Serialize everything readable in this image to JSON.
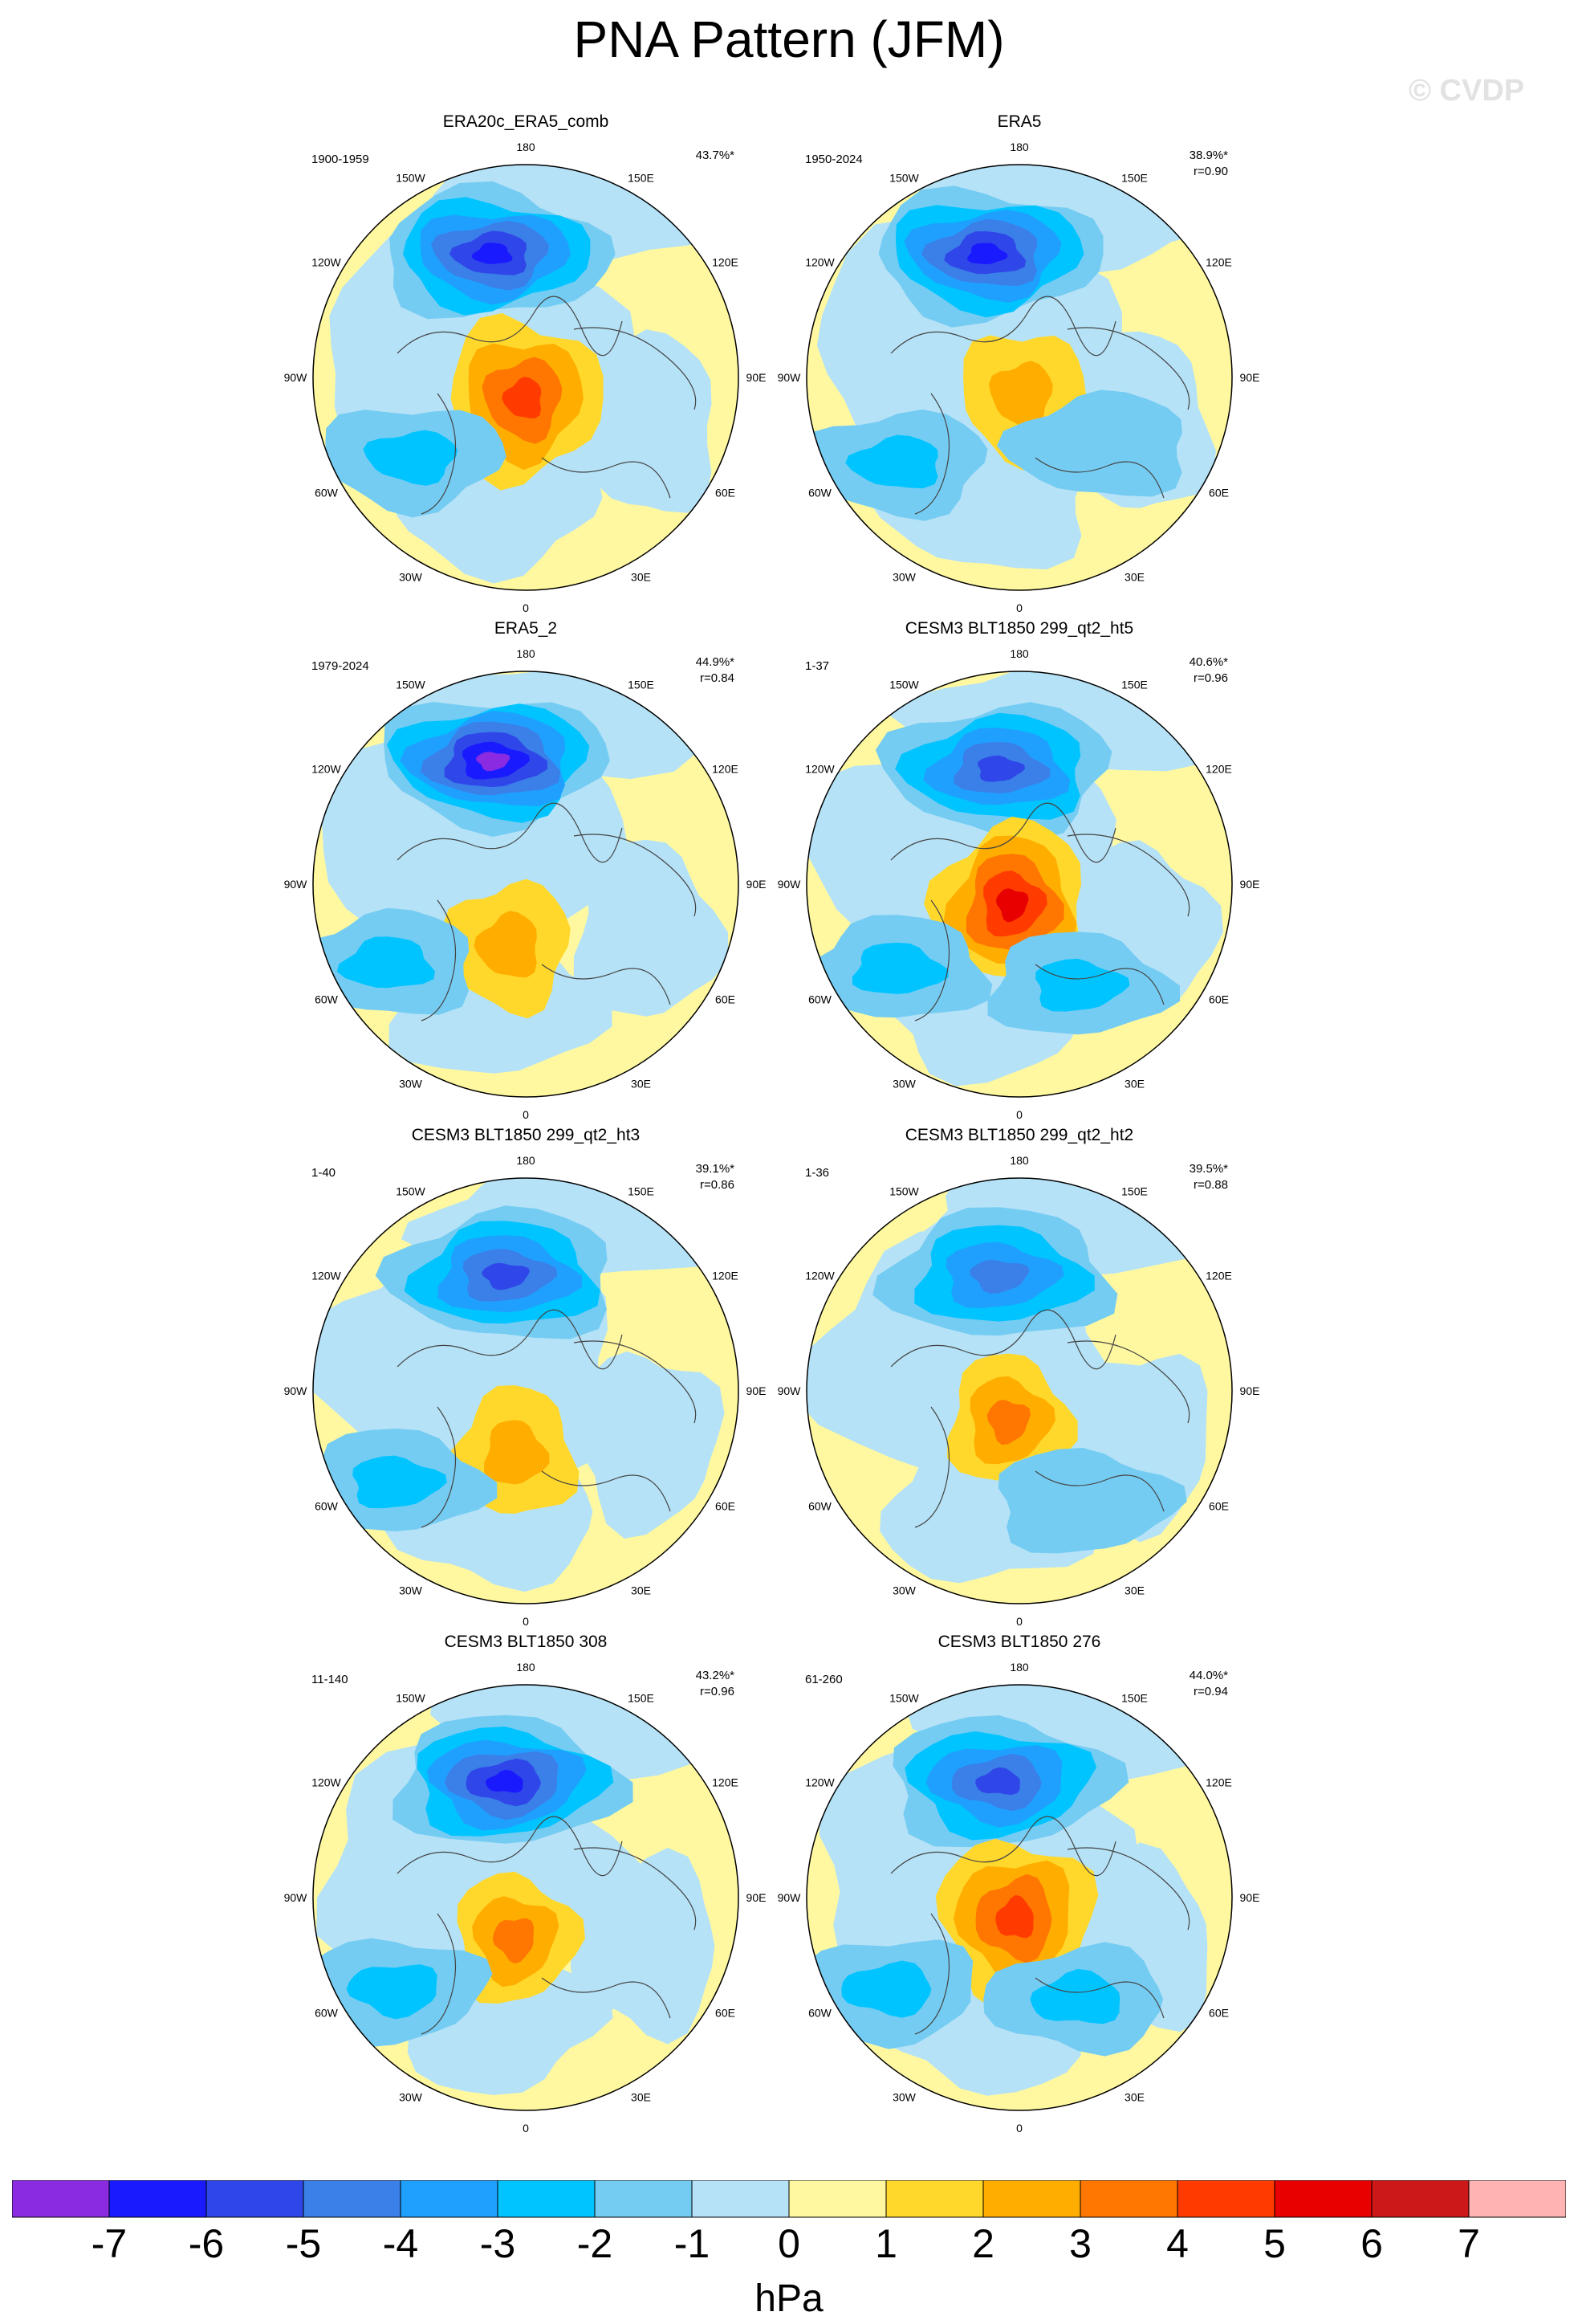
{
  "title": "PNA Pattern (JFM)",
  "watermark": "© CVDP",
  "colors": [
    "#8a2be2",
    "#1a1aff",
    "#2f47e8",
    "#3b7fe8",
    "#1fa0ff",
    "#00c4ff",
    "#75ccf2",
    "#b5e2f7",
    "#fff8a0",
    "#ffd82b",
    "#ffae00",
    "#ff7600",
    "#ff3b00",
    "#e80000",
    "#cc1818",
    "#ffb3b3"
  ],
  "lon_labels": [
    "180",
    "150E",
    "120E",
    "90E",
    "60E",
    "30E",
    "0",
    "30W",
    "60W",
    "90W",
    "120W",
    "150W"
  ],
  "panels": [
    {
      "title": "ERA20c_ERA5_comb",
      "period": "1900-1959",
      "pct": "43.7%*",
      "r": "",
      "features": [
        {
          "type": "neg",
          "level": 6,
          "lon": -165,
          "colat": 0.6
        },
        {
          "type": "pos",
          "level": 4,
          "lon": -5,
          "colat": 0.1
        },
        {
          "type": "neg",
          "level": 2,
          "lon": -55,
          "colat": 0.65
        }
      ]
    },
    {
      "title": "ERA5",
      "period": "1950-2024",
      "pct": "38.9%*",
      "r": "r=0.90",
      "features": [
        {
          "type": "neg",
          "level": 6,
          "lon": -165,
          "colat": 0.6
        },
        {
          "type": "pos",
          "level": 2,
          "lon": 10,
          "colat": 0.08
        },
        {
          "type": "neg",
          "level": 2,
          "lon": -55,
          "colat": 0.7
        },
        {
          "type": "neg",
          "level": 1,
          "lon": 50,
          "colat": 0.5
        }
      ]
    },
    {
      "title": "ERA5_2",
      "period": "1979-2024",
      "pct": "44.9%*",
      "r": "r=0.84",
      "features": [
        {
          "type": "neg",
          "level": 7,
          "lon": -165,
          "colat": 0.6
        },
        {
          "type": "pos",
          "level": 2,
          "lon": -15,
          "colat": 0.3
        },
        {
          "type": "neg",
          "level": 2,
          "lon": -60,
          "colat": 0.75
        }
      ]
    },
    {
      "title": "CESM3 BLT1850 299_qt2_ht5",
      "period": "1-37",
      "pct": "40.6%*",
      "r": "r=0.96",
      "features": [
        {
          "type": "neg",
          "level": 5,
          "lon": -170,
          "colat": 0.55
        },
        {
          "type": "pos",
          "level": 5,
          "lon": -20,
          "colat": 0.1
        },
        {
          "type": "neg",
          "level": 2,
          "lon": -55,
          "colat": 0.7
        },
        {
          "type": "neg",
          "level": 2,
          "lon": 30,
          "colat": 0.55
        }
      ]
    },
    {
      "title": "CESM3 BLT1850 299_qt2_ht3",
      "period": "1-40",
      "pct": "39.1%*",
      "r": "r=0.86",
      "features": [
        {
          "type": "neg",
          "level": 5,
          "lon": -170,
          "colat": 0.55
        },
        {
          "type": "pos",
          "level": 2,
          "lon": -10,
          "colat": 0.3
        },
        {
          "type": "neg",
          "level": 2,
          "lon": -55,
          "colat": 0.75
        }
      ]
    },
    {
      "title": "CESM3 BLT1850 299_qt2_ht2",
      "period": "1-36",
      "pct": "39.5%*",
      "r": "r=0.88",
      "features": [
        {
          "type": "neg",
          "level": 4,
          "lon": -170,
          "colat": 0.55
        },
        {
          "type": "pos",
          "level": 3,
          "lon": -20,
          "colat": 0.15
        },
        {
          "type": "neg",
          "level": 1,
          "lon": 30,
          "colat": 0.6
        }
      ]
    },
    {
      "title": "CESM3 BLT1850 308",
      "period": "11-140",
      "pct": "43.2%*",
      "r": "r=0.96",
      "features": [
        {
          "type": "neg",
          "level": 6,
          "lon": -170,
          "colat": 0.55
        },
        {
          "type": "pos",
          "level": 3,
          "lon": -15,
          "colat": 0.2
        },
        {
          "type": "neg",
          "level": 2,
          "lon": -55,
          "colat": 0.75
        }
      ]
    },
    {
      "title": "CESM3 BLT1850 276",
      "period": "61-260",
      "pct": "44.0%*",
      "r": "r=0.94",
      "features": [
        {
          "type": "neg",
          "level": 5,
          "lon": -170,
          "colat": 0.55
        },
        {
          "type": "pos",
          "level": 4,
          "lon": -10,
          "colat": 0.1
        },
        {
          "type": "neg",
          "level": 2,
          "lon": -55,
          "colat": 0.75
        },
        {
          "type": "neg",
          "level": 2,
          "lon": 30,
          "colat": 0.55
        }
      ]
    }
  ],
  "colorbar": {
    "ticks": [
      "-7",
      "-6",
      "-5",
      "-4",
      "-3",
      "-2",
      "-1",
      "0",
      "1",
      "2",
      "3",
      "4",
      "5",
      "6",
      "7"
    ],
    "unit": "hPa"
  }
}
